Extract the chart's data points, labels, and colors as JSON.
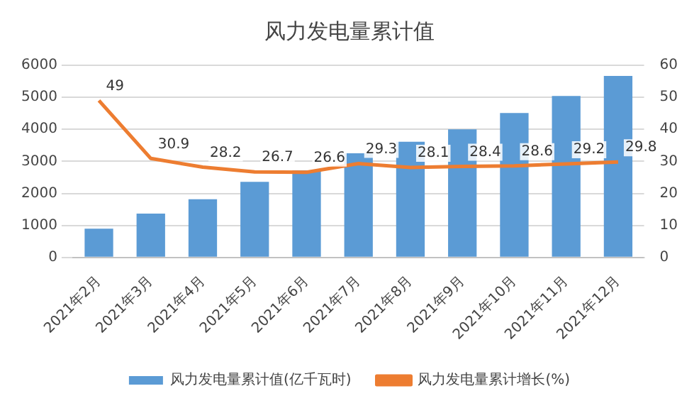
{
  "chart_data": {
    "type": "bar",
    "title": "风力发电量累计值",
    "categories": [
      "2021年2月",
      "2021年3月",
      "2021年4月",
      "2021年5月",
      "2021年6月",
      "2021年7月",
      "2021年8月",
      "2021年9月",
      "2021年10月",
      "2021年11月",
      "2021年12月"
    ],
    "series": [
      {
        "name": "风力发电量累计值(亿千瓦时)",
        "color": "#5b9bd5",
        "values": [
          900,
          1370,
          1820,
          2360,
          2720,
          3250,
          3610,
          4000,
          4510,
          5040,
          5670
        ]
      },
      {
        "name": "风力发电量累计增长(%)",
        "type": "line",
        "axis": "y2",
        "color": "#ed7d31",
        "values": [
          49,
          30.9,
          28.2,
          26.7,
          26.6,
          29.3,
          28.1,
          28.4,
          28.6,
          29.2,
          29.8
        ],
        "value_labels": [
          "49",
          "30.9",
          "28.2",
          "26.7",
          "26.6",
          "29.3",
          "28.1",
          "28.4",
          "28.6",
          "29.2",
          "29.8"
        ]
      }
    ],
    "ylim": [
      0,
      6000
    ],
    "yticks": [
      0,
      1000,
      2000,
      3000,
      4000,
      5000,
      6000
    ],
    "y2lim": [
      0,
      60
    ],
    "y2ticks": [
      0,
      10,
      20,
      30,
      40,
      50,
      60
    ],
    "grid": "y",
    "legend": "bottom",
    "marker": "none"
  }
}
